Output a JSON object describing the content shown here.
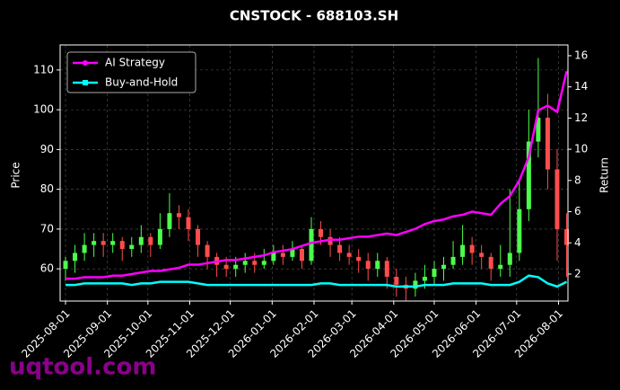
{
  "chart_data": {
    "type": "candlestick",
    "title": "CNSTOCK - 688103.SH",
    "ylabel": "Price",
    "y2label": "Return",
    "watermark": "uqtool.com",
    "up_color": "#4cff4c",
    "down_color": "#ff4c4c",
    "grid": true,
    "legend": "upper left",
    "xlim": [
      "2025-07-28",
      "2026-08-08"
    ],
    "xticks": [
      "2025-08-01",
      "2025-09-01",
      "2025-10-01",
      "2025-11-01",
      "2025-12-01",
      "2026-01-01",
      "2026-02-01",
      "2026-03-01",
      "2026-04-01",
      "2026-05-01",
      "2026-06-01",
      "2026-07-01",
      "2026-08-01"
    ],
    "ylim": [
      51.9,
      116.3
    ],
    "yticks": [
      60,
      70,
      80,
      90,
      100,
      110
    ],
    "y2lim": [
      0.27,
      16.69
    ],
    "y2ticks": [
      2,
      4,
      6,
      8,
      10,
      12,
      14,
      16
    ],
    "x": [
      "2025-08-01",
      "2025-08-08",
      "2025-08-15",
      "2025-08-22",
      "2025-08-29",
      "2025-09-05",
      "2025-09-12",
      "2025-09-19",
      "2025-09-26",
      "2025-10-03",
      "2025-10-10",
      "2025-10-17",
      "2025-10-24",
      "2025-10-31",
      "2025-11-07",
      "2025-11-14",
      "2025-11-21",
      "2025-11-28",
      "2025-12-05",
      "2025-12-12",
      "2025-12-19",
      "2025-12-26",
      "2026-01-02",
      "2026-01-09",
      "2026-01-16",
      "2026-01-23",
      "2026-01-30",
      "2026-02-06",
      "2026-02-13",
      "2026-02-20",
      "2026-02-27",
      "2026-03-06",
      "2026-03-13",
      "2026-03-20",
      "2026-03-27",
      "2026-04-03",
      "2026-04-10",
      "2026-04-17",
      "2026-04-24",
      "2026-05-01",
      "2026-05-08",
      "2026-05-15",
      "2026-05-22",
      "2026-05-29",
      "2026-06-05",
      "2026-06-12",
      "2026-06-19",
      "2026-06-26",
      "2026-07-03",
      "2026-07-10",
      "2026-07-17",
      "2026-07-24",
      "2026-07-31",
      "2026-08-07"
    ],
    "open": [
      60,
      62,
      64,
      66,
      67,
      66,
      67,
      65,
      66,
      68,
      66,
      70,
      74,
      73,
      70,
      66,
      63,
      61,
      60,
      61,
      62,
      61,
      62,
      64,
      63,
      65,
      62,
      70,
      68,
      66,
      64,
      63,
      62,
      60,
      62,
      58,
      56,
      55,
      57,
      58,
      60,
      61,
      63,
      66,
      64,
      63,
      60,
      61,
      64,
      75,
      92,
      98,
      85,
      70
    ],
    "high": [
      63,
      66,
      69,
      69,
      69,
      69,
      68,
      68,
      71,
      69,
      74,
      79,
      76,
      75,
      71,
      67,
      64,
      63,
      63,
      64,
      64,
      65,
      66,
      66,
      67,
      66,
      73,
      72,
      70,
      68,
      66,
      65,
      64,
      64,
      63,
      60,
      58,
      59,
      61,
      62,
      63,
      67,
      71,
      68,
      66,
      64,
      66,
      80,
      82,
      100,
      113,
      104,
      90,
      74
    ],
    "low": [
      57,
      59,
      62,
      63,
      63,
      64,
      62,
      63,
      64,
      63,
      65,
      68,
      70,
      67,
      63,
      60,
      58,
      58,
      58,
      59,
      59,
      60,
      61,
      61,
      62,
      60,
      61,
      66,
      63,
      62,
      61,
      59,
      57,
      58,
      55,
      53,
      52,
      53,
      55,
      56,
      57,
      60,
      61,
      61,
      60,
      57,
      58,
      58,
      62,
      72,
      88,
      80,
      62,
      58
    ],
    "close": [
      62,
      64,
      66,
      67,
      66,
      67,
      65,
      66,
      68,
      66,
      70,
      74,
      73,
      70,
      66,
      63,
      61,
      60,
      61,
      62,
      61,
      62,
      64,
      63,
      65,
      62,
      70,
      68,
      66,
      64,
      63,
      62,
      60,
      62,
      58,
      56,
      55,
      57,
      58,
      60,
      61,
      63,
      66,
      64,
      63,
      60,
      61,
      64,
      75,
      92,
      98,
      85,
      70,
      66
    ],
    "series": [
      {
        "name": "AI Strategy",
        "color": "#ff00ff",
        "axis": "y2",
        "values": [
          1.7,
          1.7,
          1.8,
          1.8,
          1.8,
          1.9,
          1.9,
          2.0,
          2.1,
          2.2,
          2.2,
          2.3,
          2.4,
          2.6,
          2.6,
          2.7,
          2.8,
          2.9,
          2.9,
          3.0,
          3.1,
          3.2,
          3.4,
          3.5,
          3.6,
          3.8,
          4.0,
          4.1,
          4.2,
          4.2,
          4.3,
          4.4,
          4.4,
          4.5,
          4.6,
          4.5,
          4.7,
          4.9,
          5.2,
          5.4,
          5.5,
          5.7,
          5.8,
          6.0,
          5.9,
          5.8,
          6.5,
          7.0,
          8.0,
          9.5,
          12.5,
          12.8,
          12.4,
          15.0
        ]
      },
      {
        "name": "Buy-and-Hold",
        "color": "#00ffff",
        "axis": "y2",
        "values": [
          1.3,
          1.3,
          1.4,
          1.4,
          1.4,
          1.4,
          1.4,
          1.3,
          1.4,
          1.4,
          1.5,
          1.5,
          1.5,
          1.5,
          1.4,
          1.3,
          1.3,
          1.3,
          1.3,
          1.3,
          1.3,
          1.3,
          1.3,
          1.3,
          1.3,
          1.3,
          1.3,
          1.4,
          1.4,
          1.3,
          1.3,
          1.3,
          1.3,
          1.3,
          1.3,
          1.2,
          1.2,
          1.2,
          1.3,
          1.3,
          1.3,
          1.4,
          1.4,
          1.4,
          1.4,
          1.3,
          1.3,
          1.3,
          1.5,
          1.9,
          1.8,
          1.4,
          1.2,
          1.5
        ]
      }
    ]
  }
}
